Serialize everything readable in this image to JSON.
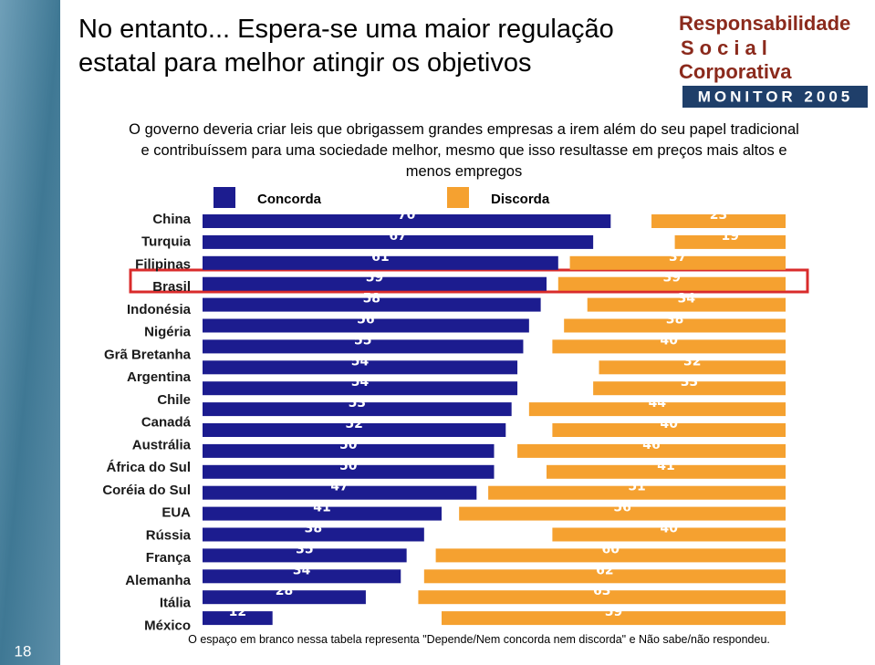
{
  "chart_data": {
    "type": "bar",
    "orientation": "horizontal",
    "title": "No entanto... Espera-se uma maior regulação estatal para melhor atingir os objetivos",
    "subtitle": "O governo deveria criar leis que obrigassem grandes empresas a irem além do seu papel tradicional e contribuíssem para uma sociedade melhor, mesmo que isso resultasse em preços mais altos e menos empregos",
    "categories": [
      "China",
      "Turquia",
      "Filipinas",
      "Brasil",
      "Indonésia",
      "Nigéria",
      "Grã Bretanha",
      "Argentina",
      "Chile",
      "Canadá",
      "Austrália",
      "África do Sul",
      null,
      "Coréia do Sul",
      "EUA",
      "Rússia",
      "França",
      "Alemanha",
      "Itália",
      "México"
    ],
    "series": [
      {
        "name": "Concorda",
        "color": "#1c1c8f",
        "values": [
          70,
          67,
          61,
          59,
          58,
          56,
          55,
          54,
          54,
          53,
          52,
          50,
          50,
          47,
          41,
          38,
          35,
          34,
          28,
          12
        ]
      },
      {
        "name": "Discorda",
        "color": "#f5a130",
        "values": [
          23,
          19,
          37,
          39,
          34,
          38,
          40,
          32,
          33,
          44,
          40,
          46,
          41,
          51,
          56,
          40,
          60,
          62,
          63,
          59
        ]
      }
    ],
    "xlim": [
      0,
      100
    ],
    "footnote": "O espaço em branco nessa tabela representa \"Depende/Nem concorda nem discorda\" e Não sabe/não respondeu.",
    "page_number": "18",
    "logo": {
      "line1": "Responsabilidade",
      "line2": "Social",
      "line3": "Corporativa",
      "banner": "MONITOR 2005"
    }
  }
}
